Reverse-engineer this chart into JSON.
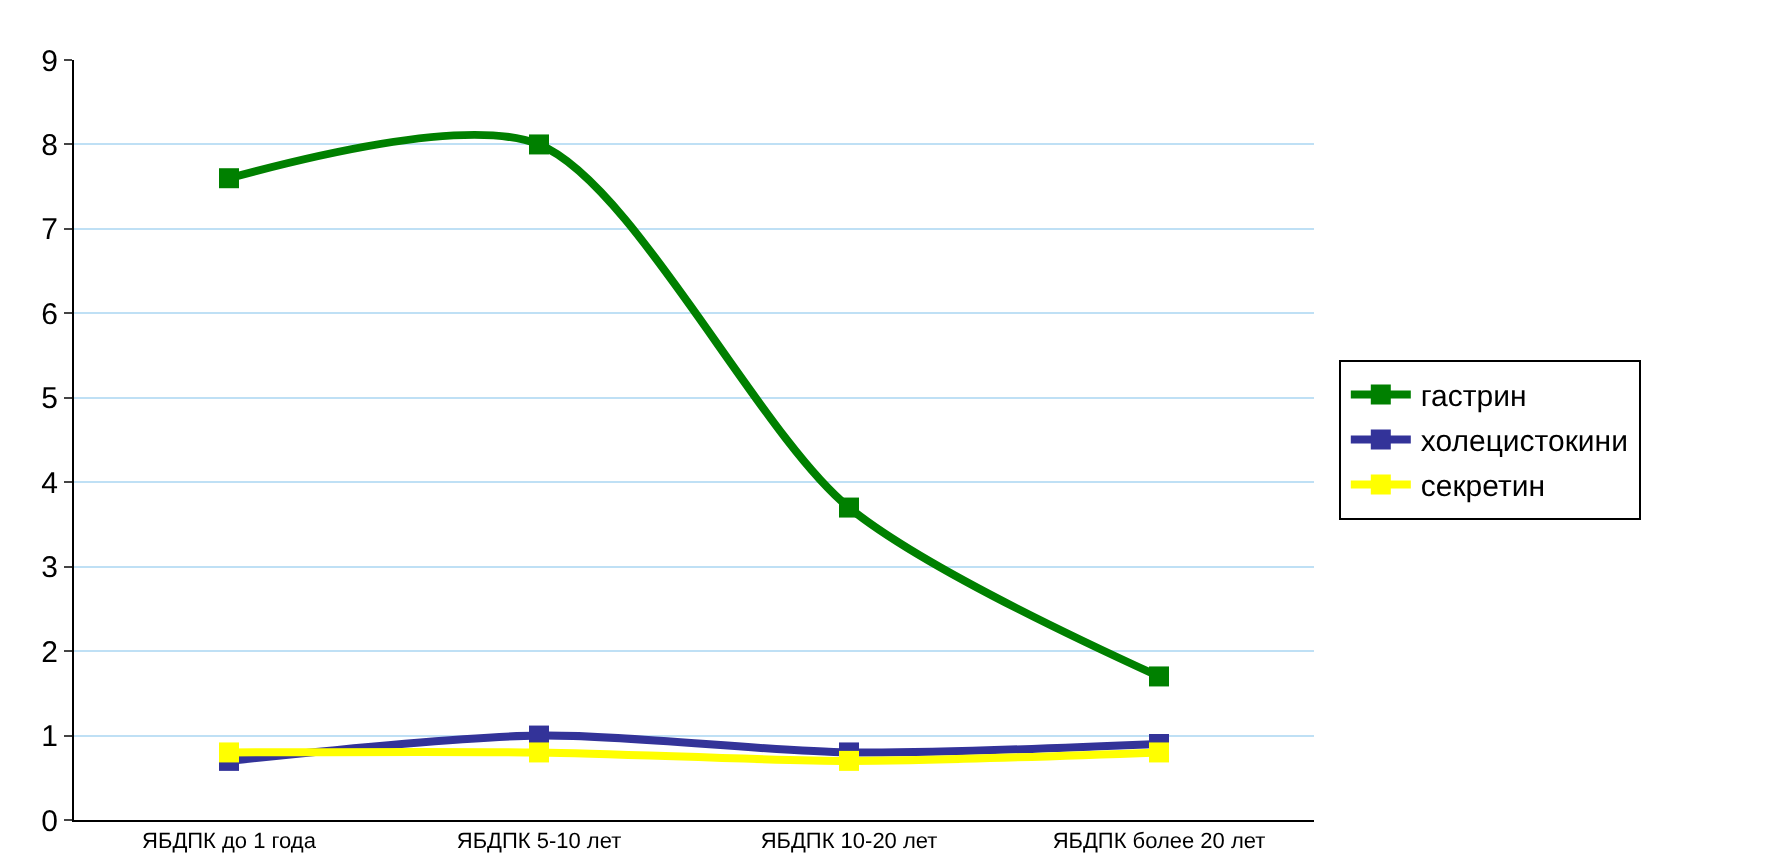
{
  "chart_data": {
    "type": "line",
    "categories": [
      "ЯБДПК до 1 года",
      "ЯБДПК 5-10 лет",
      "ЯБДПК 10-20 лет",
      "ЯБДПК более 20 лет"
    ],
    "series": [
      {
        "name": "гастрин",
        "color": "#008000",
        "values": [
          7.6,
          8.0,
          3.7,
          1.7
        ]
      },
      {
        "name": "холецистокини",
        "color": "#333399",
        "values": [
          0.7,
          1.0,
          0.8,
          0.9
        ]
      },
      {
        "name": "секретин",
        "color": "#ffff00",
        "values": [
          0.8,
          0.8,
          0.7,
          0.8
        ]
      }
    ],
    "ylim": [
      0,
      9
    ],
    "yticks": [
      0,
      1,
      2,
      3,
      4,
      5,
      6,
      7,
      8,
      9
    ],
    "grid": "y",
    "legend": "right",
    "marker": "square",
    "line_style": "solid"
  }
}
